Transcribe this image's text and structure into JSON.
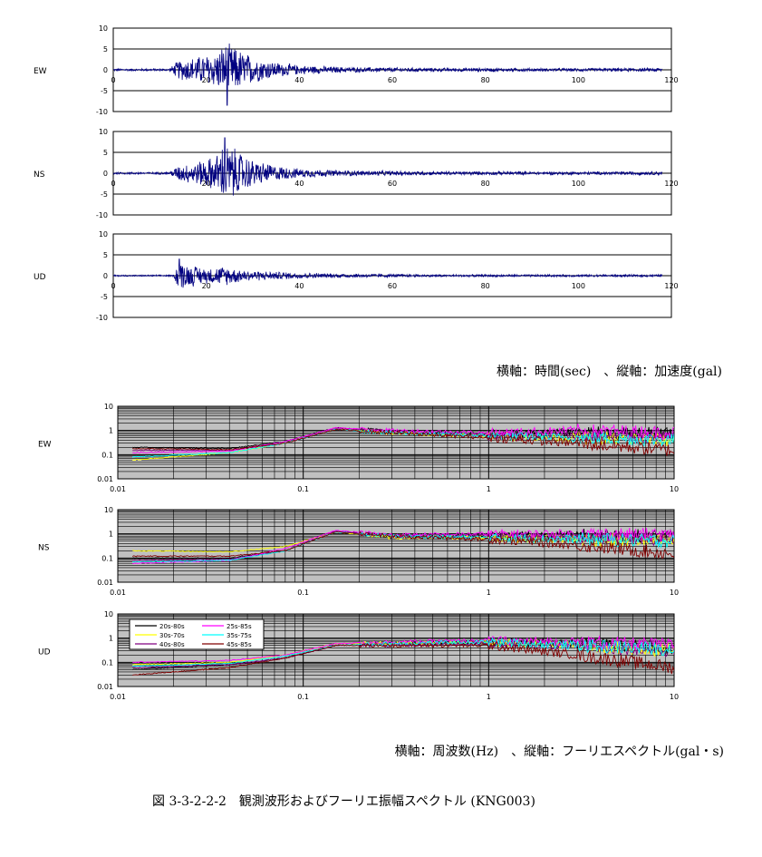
{
  "time_axis_note": "横軸：時間(sec)　、縦軸：加速度(gal)",
  "freq_axis_note": "横軸：周波数(Hz)　、縦軸：フーリエスペクトル(gal・s)",
  "figure_title": "図 3-3-2-2-2　観測波形およびフーリエ振幅スペクトル (KNG003)",
  "colors": {
    "waveform": "#000080",
    "spectrum_background": "#c0c0c0",
    "spectra": [
      "#000000",
      "#ffff00",
      "#800080",
      "#ff00ff",
      "#00ffff",
      "#800000"
    ]
  },
  "chart_data": [
    {
      "type": "line",
      "component": "EW",
      "xlim": [
        0,
        120
      ],
      "ylim": [
        -10,
        10
      ],
      "x_ticks": [
        "0",
        "20",
        "40",
        "60",
        "80",
        "100",
        "120"
      ],
      "y_ticks": [
        "10",
        "5",
        "0",
        "-5",
        "-10"
      ],
      "grid": "horizontal",
      "envelope": [
        [
          0,
          0.3
        ],
        [
          12,
          0.3
        ],
        [
          14,
          2.5
        ],
        [
          18,
          3.5
        ],
        [
          22,
          4.5
        ],
        [
          24,
          7.0
        ],
        [
          26,
          6.0
        ],
        [
          30,
          3.5
        ],
        [
          35,
          2.0
        ],
        [
          40,
          1.2
        ],
        [
          50,
          0.7
        ],
        [
          70,
          0.5
        ],
        [
          100,
          0.4
        ],
        [
          118,
          0.5
        ]
      ],
      "peak": {
        "x": 24.5,
        "y": -8.5
      }
    },
    {
      "type": "line",
      "component": "NS",
      "xlim": [
        0,
        120
      ],
      "ylim": [
        -10,
        10
      ],
      "x_ticks": [
        "0",
        "20",
        "40",
        "60",
        "80",
        "100",
        "120"
      ],
      "y_ticks": [
        "10",
        "5",
        "0",
        "-5",
        "-10"
      ],
      "grid": "horizontal",
      "envelope": [
        [
          0,
          0.3
        ],
        [
          12,
          0.3
        ],
        [
          14,
          2.0
        ],
        [
          18,
          3.0
        ],
        [
          22,
          4.5
        ],
        [
          24,
          8.0
        ],
        [
          26,
          6.5
        ],
        [
          30,
          3.5
        ],
        [
          35,
          2.0
        ],
        [
          40,
          1.2
        ],
        [
          50,
          0.7
        ],
        [
          70,
          0.5
        ],
        [
          100,
          0.4
        ],
        [
          118,
          0.5
        ]
      ],
      "peak": {
        "x": 24.0,
        "y": 8.5
      }
    },
    {
      "type": "line",
      "component": "UD",
      "xlim": [
        0,
        120
      ],
      "ylim": [
        -10,
        10
      ],
      "x_ticks": [
        "0",
        "20",
        "40",
        "60",
        "80",
        "100",
        "120"
      ],
      "y_ticks": [
        "10",
        "5",
        "0",
        "-5",
        "-10"
      ],
      "grid": "horizontal",
      "envelope": [
        [
          0,
          0.2
        ],
        [
          13,
          0.2
        ],
        [
          14,
          4.0
        ],
        [
          16,
          3.0
        ],
        [
          20,
          2.0
        ],
        [
          24,
          2.5
        ],
        [
          28,
          1.5
        ],
        [
          35,
          1.0
        ],
        [
          45,
          0.6
        ],
        [
          70,
          0.3
        ],
        [
          100,
          0.3
        ],
        [
          118,
          0.3
        ]
      ],
      "peak": {
        "x": 14.2,
        "y": 4.0
      }
    },
    {
      "type": "line",
      "component": "EW",
      "scale": "log-log",
      "xlim": [
        0.01,
        10
      ],
      "ylim": [
        0.01,
        10
      ],
      "x_ticks": [
        "0.01",
        "0.1",
        "1",
        "10"
      ],
      "y_ticks": [
        "10",
        "1",
        "0.1",
        "0.01"
      ],
      "grid": "both",
      "series": [
        {
          "name": "20s-80s",
          "points": [
            [
              0.012,
              0.2
            ],
            [
              0.04,
              0.18
            ],
            [
              0.08,
              0.35
            ],
            [
              0.15,
              1.3
            ],
            [
              0.3,
              0.9
            ],
            [
              1,
              0.7
            ],
            [
              3,
              0.8
            ],
            [
              10,
              0.7
            ]
          ]
        },
        {
          "name": "30s-70s",
          "points": [
            [
              0.012,
              0.06
            ],
            [
              0.04,
              0.12
            ],
            [
              0.08,
              0.3
            ],
            [
              0.15,
              1.2
            ],
            [
              0.3,
              0.8
            ],
            [
              1,
              0.6
            ],
            [
              3,
              0.5
            ],
            [
              10,
              0.4
            ]
          ]
        },
        {
          "name": "40s-80s",
          "points": [
            [
              0.012,
              0.15
            ],
            [
              0.04,
              0.15
            ],
            [
              0.08,
              0.3
            ],
            [
              0.15,
              1.2
            ],
            [
              0.3,
              0.9
            ],
            [
              1,
              0.6
            ],
            [
              3,
              0.6
            ],
            [
              10,
              0.5
            ]
          ]
        },
        {
          "name": "25s-85s",
          "points": [
            [
              0.012,
              0.12
            ],
            [
              0.04,
              0.14
            ],
            [
              0.08,
              0.35
            ],
            [
              0.15,
              1.3
            ],
            [
              0.3,
              1.0
            ],
            [
              1,
              0.8
            ],
            [
              3,
              1.0
            ],
            [
              10,
              0.8
            ]
          ]
        },
        {
          "name": "35s-75s",
          "points": [
            [
              0.012,
              0.08
            ],
            [
              0.04,
              0.12
            ],
            [
              0.08,
              0.3
            ],
            [
              0.15,
              1.1
            ],
            [
              0.3,
              0.8
            ],
            [
              1,
              0.6
            ],
            [
              3,
              0.5
            ],
            [
              10,
              0.4
            ]
          ]
        },
        {
          "name": "45s-85s",
          "points": [
            [
              0.012,
              0.18
            ],
            [
              0.04,
              0.16
            ],
            [
              0.08,
              0.3
            ],
            [
              0.15,
              1.1
            ],
            [
              0.3,
              0.8
            ],
            [
              1,
              0.5
            ],
            [
              3,
              0.3
            ],
            [
              10,
              0.15
            ]
          ]
        }
      ]
    },
    {
      "type": "line",
      "component": "NS",
      "scale": "log-log",
      "xlim": [
        0.01,
        10
      ],
      "ylim": [
        0.01,
        10
      ],
      "x_ticks": [
        "0.01",
        "0.1",
        "1",
        "10"
      ],
      "y_ticks": [
        "10",
        "1",
        "0.1",
        "0.01"
      ],
      "grid": "both",
      "series": [
        {
          "name": "20s-80s",
          "points": [
            [
              0.012,
              0.1
            ],
            [
              0.04,
              0.1
            ],
            [
              0.08,
              0.2
            ],
            [
              0.15,
              1.3
            ],
            [
              0.3,
              0.8
            ],
            [
              1,
              0.9
            ],
            [
              3,
              0.9
            ],
            [
              10,
              0.8
            ]
          ]
        },
        {
          "name": "30s-70s",
          "points": [
            [
              0.012,
              0.2
            ],
            [
              0.04,
              0.18
            ],
            [
              0.08,
              0.3
            ],
            [
              0.15,
              1.2
            ],
            [
              0.3,
              0.7
            ],
            [
              1,
              0.7
            ],
            [
              3,
              0.6
            ],
            [
              10,
              0.5
            ]
          ]
        },
        {
          "name": "40s-80s",
          "points": [
            [
              0.012,
              0.08
            ],
            [
              0.04,
              0.09
            ],
            [
              0.08,
              0.2
            ],
            [
              0.15,
              1.3
            ],
            [
              0.3,
              0.8
            ],
            [
              1,
              0.8
            ],
            [
              3,
              0.7
            ],
            [
              10,
              0.6
            ]
          ]
        },
        {
          "name": "25s-85s",
          "points": [
            [
              0.012,
              0.06
            ],
            [
              0.04,
              0.08
            ],
            [
              0.08,
              0.25
            ],
            [
              0.15,
              1.4
            ],
            [
              0.3,
              0.9
            ],
            [
              1,
              1.0
            ],
            [
              3,
              1.0
            ],
            [
              10,
              0.9
            ]
          ]
        },
        {
          "name": "35s-75s",
          "points": [
            [
              0.012,
              0.07
            ],
            [
              0.04,
              0.08
            ],
            [
              0.08,
              0.2
            ],
            [
              0.15,
              1.2
            ],
            [
              0.3,
              0.8
            ],
            [
              1,
              0.7
            ],
            [
              3,
              0.6
            ],
            [
              10,
              0.5
            ]
          ]
        },
        {
          "name": "45s-85s",
          "points": [
            [
              0.012,
              0.12
            ],
            [
              0.04,
              0.12
            ],
            [
              0.08,
              0.2
            ],
            [
              0.15,
              1.2
            ],
            [
              0.3,
              0.8
            ],
            [
              1,
              0.6
            ],
            [
              3,
              0.35
            ],
            [
              10,
              0.15
            ]
          ]
        }
      ]
    },
    {
      "type": "line",
      "component": "UD",
      "scale": "log-log",
      "xlim": [
        0.01,
        10
      ],
      "ylim": [
        0.01,
        10
      ],
      "x_ticks": [
        "0.01",
        "0.1",
        "1",
        "10"
      ],
      "y_ticks": [
        "10",
        "1",
        "0.1",
        "0.01"
      ],
      "grid": "both",
      "legend": "top-left",
      "series": [
        {
          "name": "20s-80s",
          "points": [
            [
              0.012,
              0.05
            ],
            [
              0.04,
              0.08
            ],
            [
              0.08,
              0.15
            ],
            [
              0.15,
              0.5
            ],
            [
              0.3,
              0.6
            ],
            [
              1,
              0.7
            ],
            [
              3,
              0.6
            ],
            [
              10,
              0.4
            ]
          ]
        },
        {
          "name": "30s-70s",
          "points": [
            [
              0.012,
              0.08
            ],
            [
              0.04,
              0.1
            ],
            [
              0.08,
              0.2
            ],
            [
              0.15,
              0.6
            ],
            [
              0.3,
              0.6
            ],
            [
              1,
              0.7
            ],
            [
              3,
              0.5
            ],
            [
              10,
              0.3
            ]
          ]
        },
        {
          "name": "40s-80s",
          "points": [
            [
              0.012,
              0.06
            ],
            [
              0.04,
              0.08
            ],
            [
              0.08,
              0.15
            ],
            [
              0.15,
              0.5
            ],
            [
              0.3,
              0.5
            ],
            [
              1,
              0.6
            ],
            [
              3,
              0.5
            ],
            [
              10,
              0.3
            ]
          ]
        },
        {
          "name": "25s-85s",
          "points": [
            [
              0.012,
              0.1
            ],
            [
              0.04,
              0.12
            ],
            [
              0.08,
              0.2
            ],
            [
              0.15,
              0.6
            ],
            [
              0.3,
              0.7
            ],
            [
              1,
              0.8
            ],
            [
              3,
              0.7
            ],
            [
              10,
              0.5
            ]
          ]
        },
        {
          "name": "35s-75s",
          "points": [
            [
              0.012,
              0.07
            ],
            [
              0.04,
              0.09
            ],
            [
              0.08,
              0.18
            ],
            [
              0.15,
              0.5
            ],
            [
              0.3,
              0.6
            ],
            [
              1,
              0.7
            ],
            [
              3,
              0.5
            ],
            [
              10,
              0.35
            ]
          ]
        },
        {
          "name": "45s-85s",
          "points": [
            [
              0.012,
              0.03
            ],
            [
              0.04,
              0.06
            ],
            [
              0.08,
              0.15
            ],
            [
              0.15,
              0.5
            ],
            [
              0.3,
              0.5
            ],
            [
              1,
              0.5
            ],
            [
              3,
              0.2
            ],
            [
              10,
              0.06
            ]
          ]
        }
      ]
    }
  ]
}
